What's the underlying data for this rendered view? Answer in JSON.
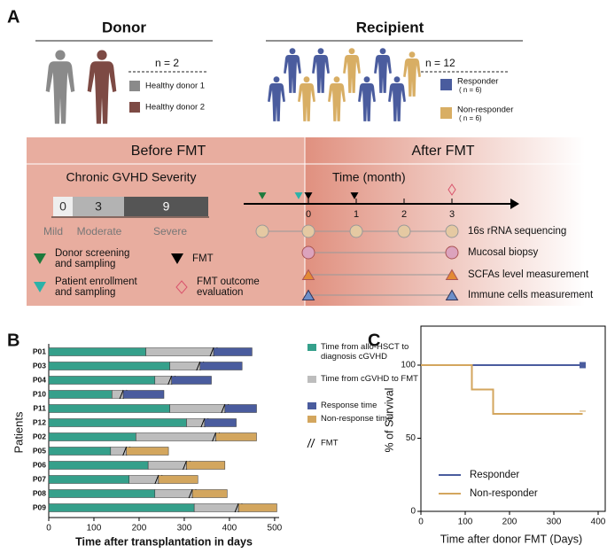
{
  "panel_a": {
    "label": "A",
    "donor": {
      "title": "Donor",
      "n": "n = 2",
      "legend": [
        "Healthy donor 1",
        "Healthy donor 2"
      ]
    },
    "recipient": {
      "title": "Recipient",
      "n": "n = 12",
      "legend": [
        {
          "name": "Responder",
          "note": "( n = 6)"
        },
        {
          "name": "Non-responder",
          "note": "( n = 6)"
        }
      ]
    },
    "before": "Before FMT",
    "after": "After FMT",
    "severity": {
      "title": "Chronic GVHD Severity",
      "scores": [
        0,
        3,
        9
      ],
      "levels": [
        "Mild",
        "Moderate",
        "Severe"
      ]
    },
    "timeline": {
      "title": "Time (month)",
      "ticks": [
        0,
        1,
        2,
        3
      ]
    },
    "measurements": [
      "16s rRNA sequencing",
      "Mucosal biopsy",
      "SCFAs level measurement",
      "Immune cells measurement"
    ],
    "key": [
      {
        "lines": [
          "Donor screening",
          "and sampling"
        ]
      },
      {
        "lines": [
          "Patient enrollment",
          "and sampling"
        ]
      },
      {
        "lines": [
          "FMT"
        ]
      },
      {
        "lines": [
          "FMT outcome",
          "evaluation"
        ]
      }
    ]
  },
  "chart_data": [
    {
      "panel": "B",
      "type": "bar",
      "orientation": "horizontal",
      "stacked": true,
      "categories": [
        "P01",
        "P03",
        "P04",
        "P10",
        "P11",
        "P12",
        "P02",
        "P05",
        "P06",
        "P07",
        "P08",
        "P09"
      ],
      "series": [
        {
          "name": "Time from allo-HSCT to diagnosis cGVHD",
          "color": "#35a08b",
          "values": [
            215,
            268,
            235,
            140,
            268,
            305,
            193,
            137,
            220,
            178,
            235,
            322
          ]
        },
        {
          "name": "Time from cGVHD to FMT",
          "color": "#bdbdbd",
          "values": [
            150,
            67,
            37,
            25,
            122,
            40,
            177,
            35,
            85,
            65,
            83,
            98
          ]
        },
        {
          "name": "Response time",
          "color": "#4a5c9e",
          "values": [
            85,
            93,
            88,
            90,
            70,
            70,
            null,
            null,
            null,
            null,
            null,
            null
          ]
        },
        {
          "name": "Non-response time",
          "color": "#d3a65e",
          "values": [
            null,
            null,
            null,
            null,
            null,
            null,
            90,
            93,
            85,
            87,
            77,
            85
          ]
        }
      ],
      "fmt_label": "FMT",
      "xlabel": "Time after transplantation in days",
      "ylabel": "Patients",
      "xlim": [
        0,
        510
      ],
      "xticks": [
        0,
        100,
        200,
        300,
        400,
        500
      ]
    },
    {
      "panel": "C",
      "type": "line",
      "step": true,
      "series": [
        {
          "name": "Responder",
          "color": "#4a5c9e",
          "x": [
            0,
            365
          ],
          "values": [
            100,
            100
          ]
        },
        {
          "name": "Non-responder",
          "color": "#d3a65e",
          "x": [
            0,
            115,
            163,
            365
          ],
          "values": [
            100,
            83.3,
            66.7,
            66.7
          ]
        }
      ],
      "xlabel": "Time after donor FMT (Days)",
      "ylabel": "% of Survival",
      "xlim": [
        0,
        400
      ],
      "ylim": [
        0,
        100
      ],
      "xticks": [
        0,
        100,
        200,
        300,
        400
      ],
      "yticks": [
        0,
        50,
        100
      ]
    }
  ]
}
